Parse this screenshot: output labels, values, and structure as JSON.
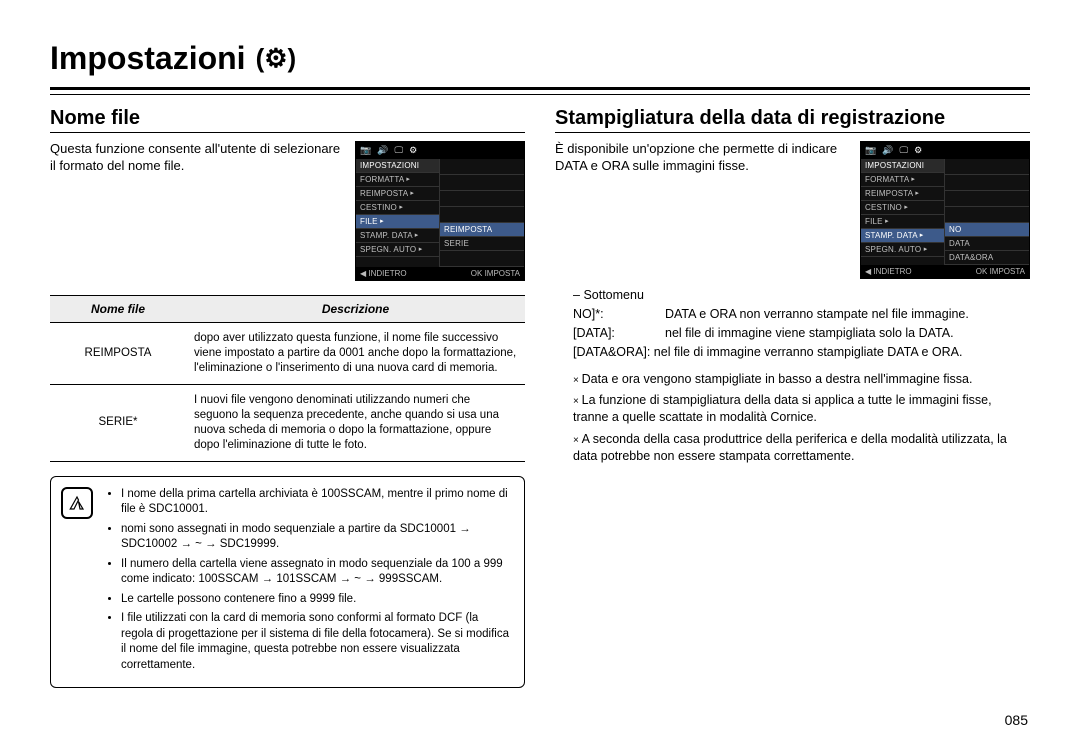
{
  "page": {
    "title": "Impostazioni",
    "title_icon": "gear-icon",
    "page_number": "085"
  },
  "left": {
    "section_title": "Nome file",
    "intro": "Questa funzione consente all'utente di selezionare il formato del nome file.",
    "table": {
      "headers": [
        "Nome file",
        "Descrizione"
      ],
      "rows": [
        {
          "name": "REIMPOSTA",
          "desc": "dopo aver utilizzato questa funzione, il nome file successivo viene impostato a partire da 0001 anche dopo la formattazione, l'eliminazione o l'inserimento di una nuova card di memoria."
        },
        {
          "name": "SERIE*",
          "desc": "I nuovi file vengono denominati utilizzando numeri che seguono la sequenza precedente, anche quando si usa una nuova scheda di memoria o dopo la formattazione, oppure dopo l'eliminazione di tutte le foto."
        }
      ]
    },
    "notes": [
      "I nome della prima cartella archiviata è 100SSCAM, mentre il primo nome di file è SDC10001.",
      "nomi sono assegnati in modo sequenziale a partire da SDC10001 → SDC10002 → ~ → SDC19999.",
      "Il numero della cartella viene assegnato in modo sequenziale da 100 a 999 come indicato: 100SSCAM → 101SSCAM → ~ → 999SSCAM.",
      "Le cartelle possono contenere fino a 9999 file.",
      "I file utilizzati con la card di memoria sono conformi al formato DCF (la regola di progettazione per il sistema di file della fotocamera). Se si modifica il nome del file immagine, questa potrebbe non essere visualizzata correttamente."
    ]
  },
  "right": {
    "section_title": "Stampigliatura della data di registrazione",
    "intro": "È disponibile un'opzione che permette di indicare DATA e ORA sulle immagini fisse.",
    "submenu_label": "Sottomenu",
    "submenu": [
      {
        "key": "NO]*:",
        "val": "DATA e ORA non verranno stampate nel file immagine."
      },
      {
        "key": "[DATA]:",
        "val": "nel file di immagine viene stampigliata solo la DATA."
      }
    ],
    "submenu_wide": "[DATA&ORA]: nel file di immagine verranno stampigliate DATA e ORA.",
    "asterisk_notes": [
      "Data e ora vengono stampigliate in basso a destra nell'immagine fissa.",
      "La funzione di stampigliatura della data si applica a tutte le immagini fisse, tranne a quelle scattate in modalità Cornice.",
      "A seconda della casa produttrice della periferica e della modalità utilizzata, la data potrebbe non essere stampata correttamente."
    ]
  },
  "cam_left": {
    "top_icons": [
      "📷",
      "🔊",
      "🖵",
      "⚙"
    ],
    "left_rows": [
      "IMPOSTAZIONI",
      "FORMATTA",
      "REIMPOSTA",
      "CESTINO",
      "FILE",
      "STAMP. DATA",
      "SPEGN. AUTO"
    ],
    "right_rows": [
      "",
      "",
      "",
      "",
      "REIMPOSTA",
      "SERIE",
      ""
    ],
    "left_highlight_index": 4,
    "right_highlight_index": 4,
    "bottom_left": "◀ INDIETRO",
    "bottom_right": "OK IMPOSTA"
  },
  "cam_right": {
    "top_icons": [
      "📷",
      "🔊",
      "🖵",
      "⚙"
    ],
    "left_rows": [
      "IMPOSTAZIONI",
      "FORMATTA",
      "REIMPOSTA",
      "CESTINO",
      "FILE",
      "STAMP. DATA",
      "SPEGN. AUTO"
    ],
    "right_rows": [
      "",
      "",
      "",
      "",
      "NO",
      "DATA",
      "DATA&ORA"
    ],
    "left_highlight_index": 5,
    "right_highlight_index": 4,
    "bottom_left": "◀ INDIETRO",
    "bottom_right": "OK IMPOSTA"
  },
  "style": {
    "page_bg": "#ffffff",
    "text_color": "#000000",
    "table_header_bg": "#ededed",
    "cam_bg": "#111111",
    "cam_highlight_bg": "#3d5a8a",
    "cam_text": "#c0c0c0"
  }
}
